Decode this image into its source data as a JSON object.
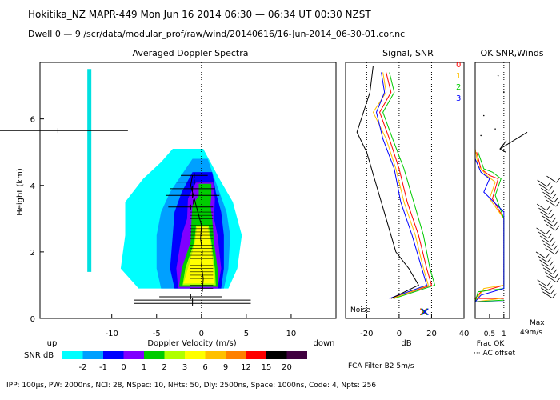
{
  "header": {
    "title": "Hokitika_NZ   MAPR-449   Mon Jun 16 2014 06:30 — 06:34 UT 00:30 NZST",
    "subtitle": "Dwell  0 —  9   /scr/data/modular_prof/raw/wind/20140616/16-Jun-2014_06-30-01.cor.nc"
  },
  "footer": {
    "params": "IPP: 100μs,  PW: 2000ns,  NCI: 28,  NSpec: 10,  NHts: 50,  Dly: 2500ns,  Space: 1000ns,  Code: 4,  Npts: 256",
    "filter": "FCA Filter B2   5m/s"
  },
  "colorbar": {
    "label": "SNR dB",
    "colors": [
      "#00ffff",
      "#00a0ff",
      "#0000ff",
      "#8000ff",
      "#00cc00",
      "#b0ff00",
      "#ffff00",
      "#ffc000",
      "#ff8000",
      "#ff0000",
      "#000000",
      "#400040"
    ],
    "ticks": [
      "-2",
      "-1",
      "0",
      "1",
      "2",
      "3",
      "6",
      "9",
      "12",
      "15",
      "20"
    ]
  },
  "chart_data": [
    {
      "type": "heatmap",
      "title": "Averaged Doppler Spectra",
      "xlabel": "Doppler Velocity (m/s)",
      "ylabel": "Height (km)",
      "x_ticks": [
        "-10",
        "-5",
        "0",
        "5",
        "10"
      ],
      "y_ticks": [
        "0",
        "2",
        "4",
        "6"
      ],
      "xlim": [
        -18,
        15
      ],
      "ylim": [
        0,
        7.7
      ],
      "left_note": "up",
      "right_note": "down",
      "noise_level_velocity": -12.5,
      "mean_velocity": [
        {
          "h": 0.8,
          "v": 0.1
        },
        {
          "h": 1.2,
          "v": 0.2
        },
        {
          "h": 1.6,
          "v": 0.0
        },
        {
          "h": 2.0,
          "v": 0.1
        },
        {
          "h": 2.4,
          "v": -0.1
        },
        {
          "h": 2.8,
          "v": 0.0
        },
        {
          "h": 3.2,
          "v": -0.4
        },
        {
          "h": 3.6,
          "v": -0.8
        },
        {
          "h": 4.0,
          "v": -1.2
        },
        {
          "h": 4.3,
          "v": -1.0
        }
      ],
      "errorbars": [
        {
          "h": 0.45,
          "v": -1.0,
          "w": 6.5
        },
        {
          "h": 0.55,
          "v": -1.0,
          "w": 6.5
        },
        {
          "h": 0.65,
          "v": -1.2,
          "w": 3.5
        },
        {
          "h": 4.3,
          "v": -0.8,
          "w": 1.5
        },
        {
          "h": 4.1,
          "v": -0.8,
          "w": 2.0
        },
        {
          "h": 3.9,
          "v": -1.0,
          "w": 2.5
        },
        {
          "h": 3.7,
          "v": -1.0,
          "w": 3.0
        },
        {
          "h": 3.5,
          "v": -0.9,
          "w": 2.5
        },
        {
          "h": 3.35,
          "v": -1.2,
          "w": 2.5
        },
        {
          "h": 5.65,
          "v": -16.0,
          "w": 7.8
        }
      ]
    },
    {
      "type": "line",
      "title": "Signal, SNR",
      "xlabel": "dB",
      "x_ticks": [
        "-20",
        "0",
        "20",
        "40"
      ],
      "xlim": [
        -33,
        40
      ],
      "ylim": [
        0,
        7.7
      ],
      "note": "Noise",
      "series": [
        {
          "name": "0",
          "color": "#ff0000",
          "points": [
            [
              -8,
              7.4
            ],
            [
              -5,
              6.8
            ],
            [
              -12,
              6.2
            ],
            [
              -6,
              5.4
            ],
            [
              0,
              4.5
            ],
            [
              5,
              3.5
            ],
            [
              12,
              2.5
            ],
            [
              17,
              1.5
            ],
            [
              20,
              1.0
            ],
            [
              -5,
              0.6
            ]
          ]
        },
        {
          "name": "1",
          "color": "#ffc000",
          "points": [
            [
              -10,
              7.4
            ],
            [
              -8,
              6.8
            ],
            [
              -16,
              6.2
            ],
            [
              -8,
              5.4
            ],
            [
              -2,
              4.5
            ],
            [
              3,
              3.5
            ],
            [
              10,
              2.5
            ],
            [
              15,
              1.5
            ],
            [
              18,
              1.0
            ],
            [
              -4,
              0.6
            ]
          ]
        },
        {
          "name": "2",
          "color": "#00cc00",
          "points": [
            [
              -6,
              7.4
            ],
            [
              -3,
              6.8
            ],
            [
              -10,
              6.2
            ],
            [
              -4,
              5.4
            ],
            [
              3,
              4.5
            ],
            [
              9,
              3.5
            ],
            [
              15,
              2.5
            ],
            [
              19,
              1.5
            ],
            [
              22,
              1.0
            ],
            [
              -3,
              0.6
            ]
          ]
        },
        {
          "name": "3",
          "color": "#0000ff",
          "points": [
            [
              -11,
              7.4
            ],
            [
              -9,
              6.8
            ],
            [
              -14,
              6.2
            ],
            [
              -10,
              5.4
            ],
            [
              -3,
              4.5
            ],
            [
              1,
              3.5
            ],
            [
              8,
              2.5
            ],
            [
              14,
              1.5
            ],
            [
              17,
              1.0
            ],
            [
              -6,
              0.6
            ]
          ]
        },
        {
          "name": "noise",
          "color": "#000000",
          "points": [
            [
              -16,
              7.6
            ],
            [
              -18,
              6.8
            ],
            [
              -26,
              5.6
            ],
            [
              -20,
              5.0
            ],
            [
              -14,
              4.0
            ],
            [
              -8,
              3.0
            ],
            [
              -2,
              2.0
            ],
            [
              6,
              1.5
            ],
            [
              12,
              1.0
            ],
            [
              -5,
              0.6
            ]
          ]
        }
      ],
      "markers": [
        {
          "x": 15,
          "y": 0.2,
          "colors": [
            "#ff0000",
            "#00cc00",
            "#0000ff"
          ]
        }
      ]
    },
    {
      "type": "line",
      "title": "OK SNR,Winds",
      "xlabel": "Frac OK",
      "xlabel2": "··· AC offset",
      "x_ticks": [
        "0.5",
        "1"
      ],
      "xlim": [
        0,
        1.2
      ],
      "ylim": [
        0,
        7.7
      ],
      "series": [
        {
          "name": "0",
          "color": "#ff0000",
          "points": [
            [
              1.0,
              0.6
            ],
            [
              0.0,
              0.6
            ],
            [
              0.2,
              0.8
            ],
            [
              1.0,
              1.0
            ],
            [
              1.0,
              3.0
            ],
            [
              0.6,
              3.6
            ],
            [
              0.8,
              4.2
            ],
            [
              0.5,
              4.3
            ],
            [
              0.2,
              4.5
            ],
            [
              0.05,
              5.0
            ]
          ]
        },
        {
          "name": "1",
          "color": "#ffc000",
          "points": [
            [
              0.9,
              0.6
            ],
            [
              0.0,
              0.5
            ],
            [
              0.3,
              0.9
            ],
            [
              1.0,
              1.0
            ],
            [
              1.0,
              3.0
            ],
            [
              0.5,
              3.6
            ],
            [
              0.7,
              4.1
            ],
            [
              0.4,
              4.3
            ],
            [
              0.1,
              4.6
            ],
            [
              0.0,
              5.1
            ]
          ]
        },
        {
          "name": "2",
          "color": "#00cc00",
          "points": [
            [
              1.0,
              0.55
            ],
            [
              0.0,
              0.5
            ],
            [
              0.1,
              0.8
            ],
            [
              1.0,
              0.9
            ],
            [
              1.0,
              3.0
            ],
            [
              0.7,
              3.7
            ],
            [
              0.9,
              4.2
            ],
            [
              0.6,
              4.4
            ],
            [
              0.3,
              4.5
            ],
            [
              0.1,
              5.0
            ]
          ]
        },
        {
          "name": "3",
          "color": "#0000ff",
          "points": [
            [
              1.0,
              0.5
            ],
            [
              0.0,
              0.5
            ],
            [
              0.2,
              0.7
            ],
            [
              1.0,
              0.9
            ],
            [
              1.0,
              3.2
            ],
            [
              0.3,
              3.8
            ],
            [
              0.5,
              4.2
            ],
            [
              0.2,
              4.4
            ],
            [
              0.0,
              4.8
            ],
            [
              0.0,
              5.5
            ]
          ]
        }
      ],
      "legend": [
        "0",
        "1",
        "2",
        "3"
      ],
      "wind_note": "Max\n49m/s"
    }
  ]
}
